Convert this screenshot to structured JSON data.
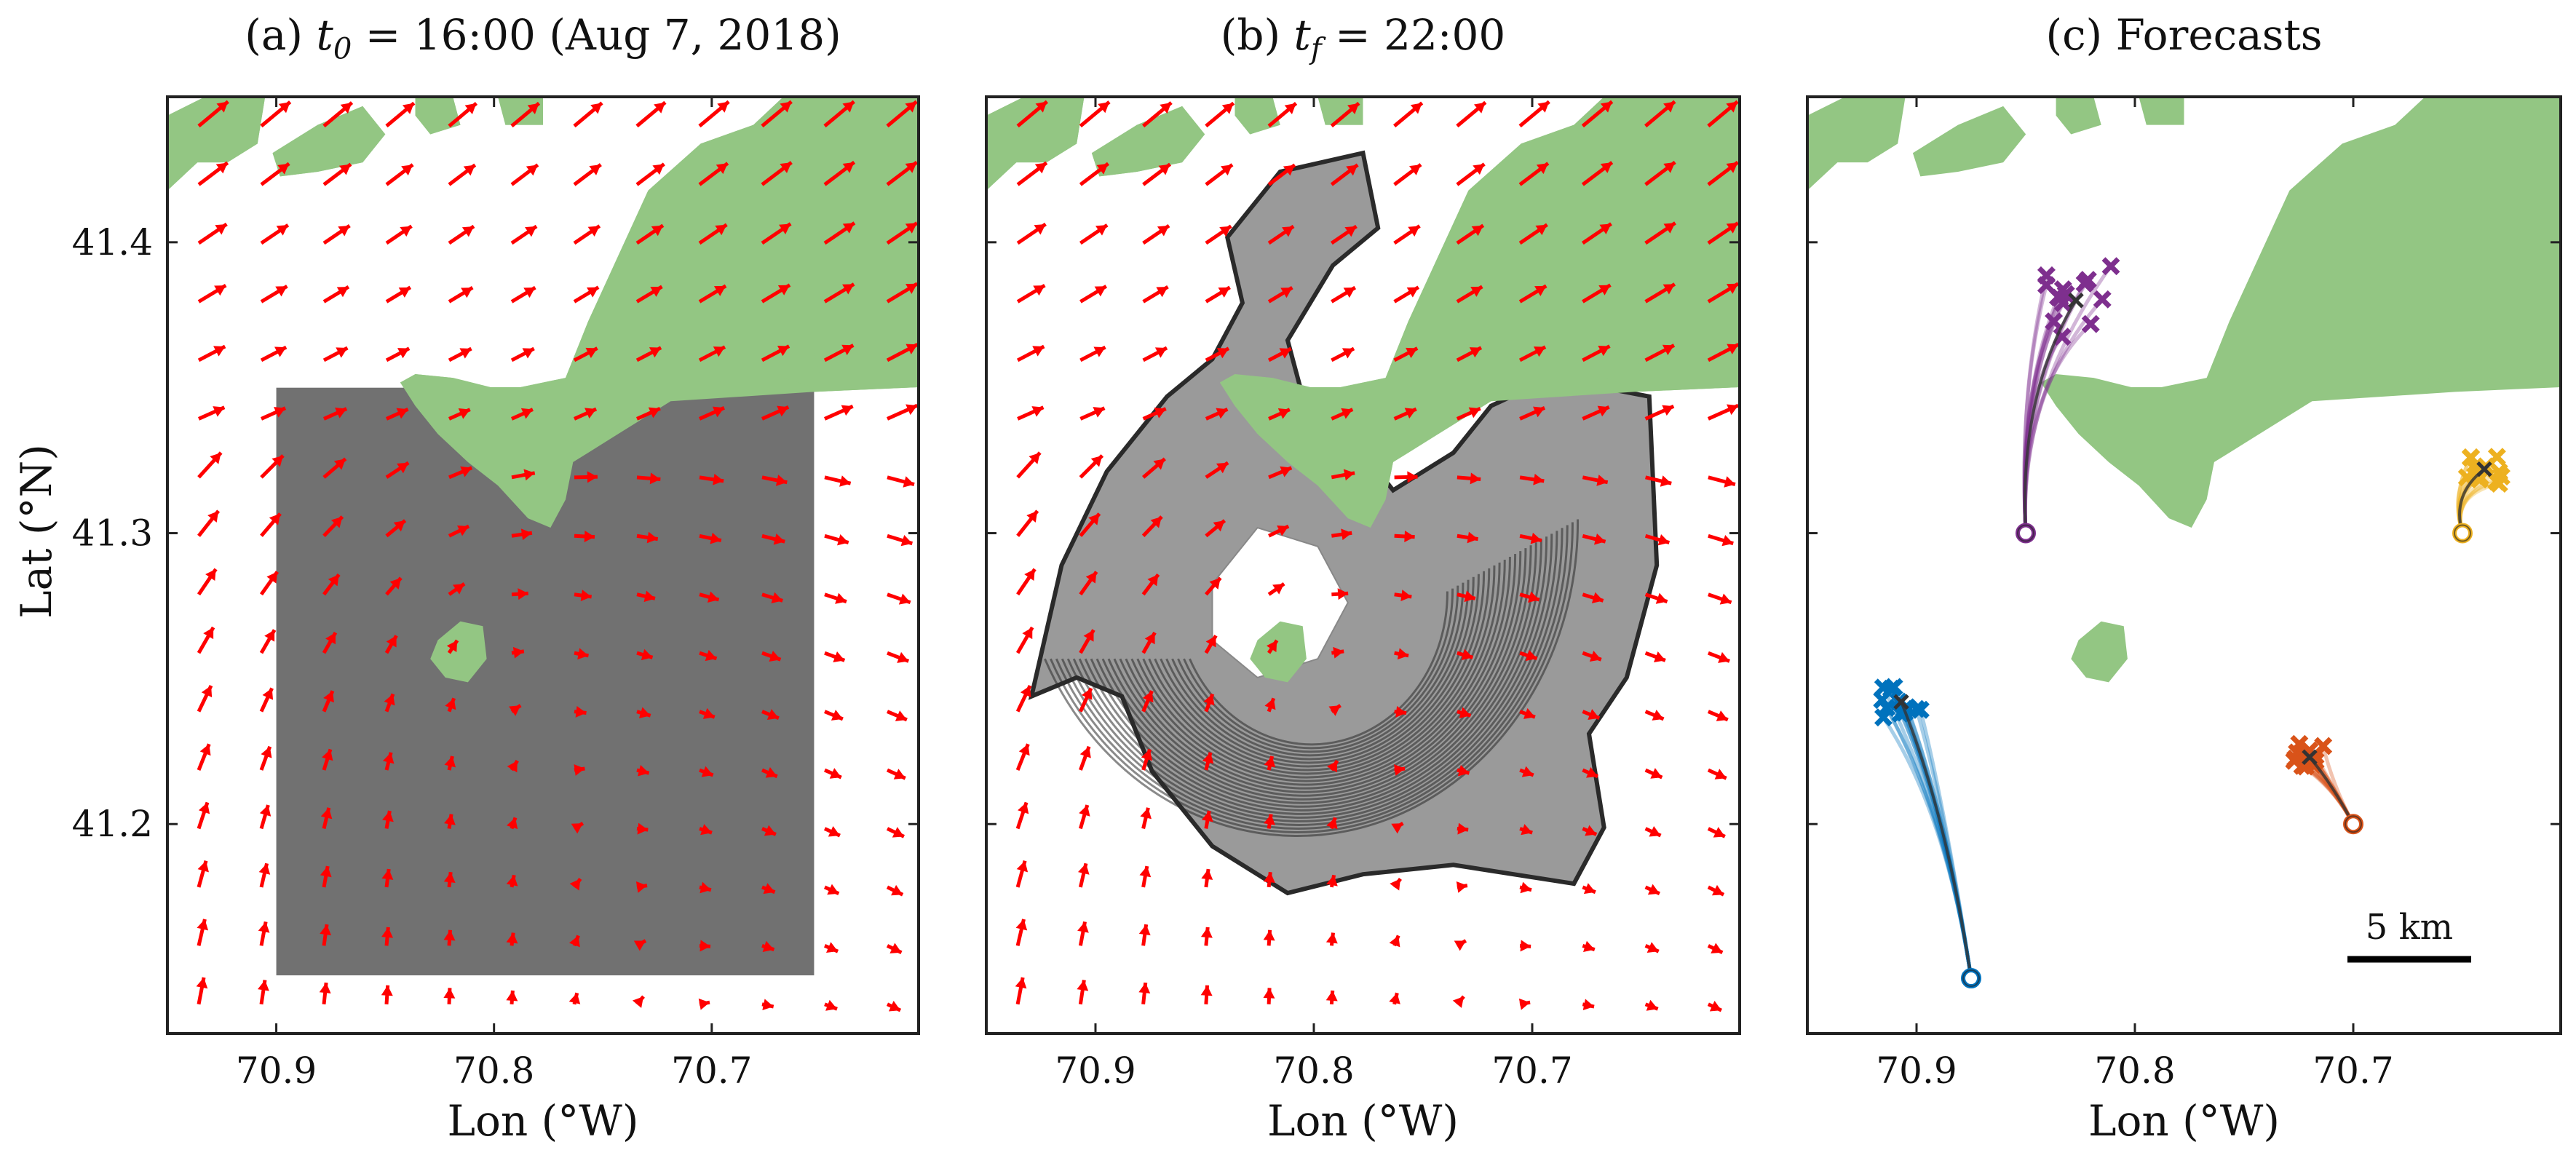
{
  "chart_data": [
    {
      "id": "a",
      "type": "quiver",
      "title_prefix": "(a) ",
      "title_var": "t",
      "title_sub": "0",
      "title_rest": " = 16:00 (Aug 7, 2018)",
      "xlabel": "Lon (°W)",
      "ylabel": "Lat (°N)",
      "xticks": [
        70.9,
        70.8,
        70.7
      ],
      "xtick_labels": [
        "70.9",
        "70.8",
        "70.7"
      ],
      "yticks": [
        41.4,
        41.3,
        41.2
      ],
      "ytick_labels": [
        "41.4",
        "41.3",
        "41.2"
      ],
      "xlim": [
        70.95,
        70.605
      ],
      "ylim": [
        41.128,
        41.45
      ],
      "arrow_color": "#ff0000",
      "land_color": "#93c683",
      "region_color": "#717171",
      "region_lon": [
        70.9,
        70.653
      ],
      "region_lat": [
        41.148,
        41.35
      ]
    },
    {
      "id": "b",
      "type": "quiver",
      "title_prefix": "(b) ",
      "title_var": "t",
      "title_sub": "f",
      "title_rest": " = 22:00",
      "xlabel": "Lon (°W)",
      "xticks": [
        70.9,
        70.8,
        70.7
      ],
      "xtick_labels": [
        "70.9",
        "70.8",
        "70.7"
      ],
      "yticks": [
        41.4,
        41.3,
        41.2
      ],
      "xlim": [
        70.95,
        70.605
      ],
      "ylim": [
        41.128,
        41.45
      ],
      "arrow_color": "#ff0000",
      "land_color": "#93c683",
      "advected_color": "#2a2a2a"
    },
    {
      "id": "c",
      "type": "scatter",
      "title_prefix": "(c) Forecasts",
      "xlabel": "Lon (°W)",
      "xticks": [
        70.9,
        70.8,
        70.7
      ],
      "xtick_labels": [
        "70.9",
        "70.8",
        "70.7"
      ],
      "yticks": [
        41.4,
        41.3,
        41.2
      ],
      "xlim": [
        70.95,
        70.605
      ],
      "ylim": [
        41.128,
        41.45
      ],
      "land_color": "#93c683",
      "scale_bar_label": "5 km",
      "series": [
        {
          "color": "#7e2f8e",
          "start": [
            70.85,
            41.3
          ],
          "end": [
            70.827,
            41.38
          ],
          "spread": [
            0.016,
            0.014
          ]
        },
        {
          "color": "#0072bd",
          "start": [
            70.875,
            41.147
          ],
          "end": [
            70.907,
            41.242
          ],
          "spread": [
            0.01,
            0.006
          ]
        },
        {
          "color": "#d95319",
          "start": [
            70.7,
            41.2
          ],
          "end": [
            70.72,
            41.223
          ],
          "spread": [
            0.008,
            0.006
          ]
        },
        {
          "color": "#edb120",
          "start": [
            70.65,
            41.3
          ],
          "end": [
            70.64,
            41.322
          ],
          "spread": [
            0.008,
            0.005
          ]
        }
      ]
    }
  ]
}
